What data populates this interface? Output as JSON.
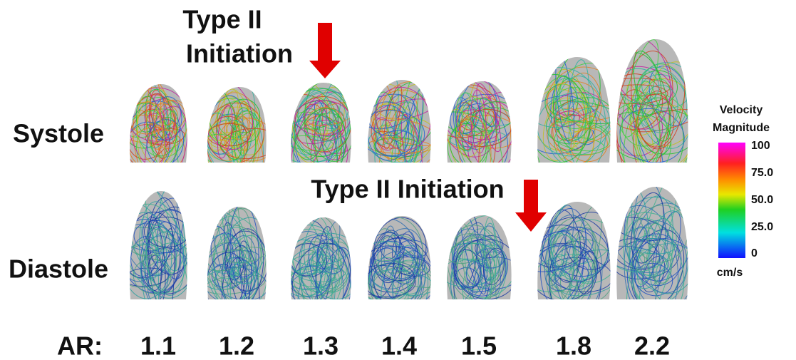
{
  "top_annotation": {
    "lines": [
      "Type II",
      "Initiation"
    ]
  },
  "middle_annotation": "Type II Initiation",
  "rows": [
    "Systole",
    "Diastole"
  ],
  "ar_label": "AR:",
  "ar_values": [
    "1.1",
    "1.2",
    "1.3",
    "1.4",
    "1.5",
    "1.8",
    "2.2"
  ],
  "colorbar": {
    "title": [
      "Velocity",
      "Magnitude"
    ],
    "ticks": [
      "100",
      "75.0",
      "50.0",
      "25.0",
      "0"
    ],
    "unit": "cm/s"
  }
}
